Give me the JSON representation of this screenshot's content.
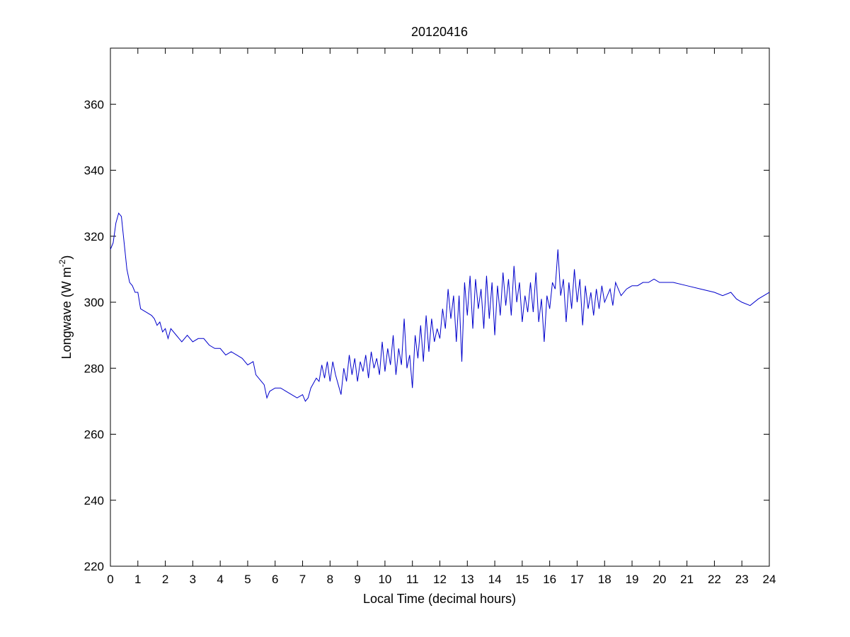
{
  "chart_data": {
    "type": "line",
    "title": "20120416",
    "xlabel": "Local Time (decimal hours)",
    "ylabel": "Longwave (W m",
    "ylabel_sup": "-2",
    "ylabel_end": ")",
    "xlim": [
      0,
      24
    ],
    "ylim": [
      220,
      377
    ],
    "xticks": [
      0,
      1,
      2,
      3,
      4,
      5,
      6,
      7,
      8,
      9,
      10,
      11,
      12,
      13,
      14,
      15,
      16,
      17,
      18,
      19,
      20,
      21,
      22,
      23,
      24
    ],
    "yticks": [
      220,
      240,
      260,
      280,
      300,
      320,
      340,
      360
    ],
    "grid": false,
    "series": [
      {
        "color": "#0000cc",
        "x": [
          0,
          0.1,
          0.2,
          0.3,
          0.4,
          0.5,
          0.6,
          0.7,
          0.8,
          0.9,
          1.0,
          1.1,
          1.3,
          1.5,
          1.6,
          1.7,
          1.8,
          1.9,
          2.0,
          2.1,
          2.2,
          2.4,
          2.6,
          2.8,
          3.0,
          3.2,
          3.4,
          3.6,
          3.8,
          4.0,
          4.2,
          4.4,
          4.6,
          4.8,
          5.0,
          5.2,
          5.3,
          5.5,
          5.6,
          5.7,
          5.8,
          6.0,
          6.2,
          6.4,
          6.6,
          6.8,
          7.0,
          7.1,
          7.2,
          7.3,
          7.5,
          7.6,
          7.7,
          7.8,
          7.9,
          8.0,
          8.1,
          8.2,
          8.3,
          8.4,
          8.5,
          8.6,
          8.7,
          8.8,
          8.9,
          9.0,
          9.1,
          9.2,
          9.3,
          9.4,
          9.5,
          9.6,
          9.7,
          9.8,
          9.9,
          10.0,
          10.1,
          10.2,
          10.3,
          10.4,
          10.5,
          10.6,
          10.7,
          10.8,
          10.9,
          11.0,
          11.1,
          11.2,
          11.3,
          11.4,
          11.5,
          11.6,
          11.7,
          11.8,
          11.9,
          12.0,
          12.1,
          12.2,
          12.3,
          12.4,
          12.5,
          12.6,
          12.7,
          12.8,
          12.9,
          13.0,
          13.1,
          13.2,
          13.3,
          13.4,
          13.5,
          13.6,
          13.7,
          13.8,
          13.9,
          14.0,
          14.1,
          14.2,
          14.3,
          14.4,
          14.5,
          14.6,
          14.7,
          14.8,
          14.9,
          15.0,
          15.1,
          15.2,
          15.3,
          15.4,
          15.5,
          15.6,
          15.7,
          15.8,
          15.9,
          16.0,
          16.1,
          16.2,
          16.3,
          16.4,
          16.5,
          16.6,
          16.7,
          16.8,
          16.9,
          17.0,
          17.1,
          17.2,
          17.3,
          17.4,
          17.5,
          17.6,
          17.7,
          17.8,
          17.9,
          18.0,
          18.2,
          18.3,
          18.4,
          18.6,
          18.8,
          19.0,
          19.2,
          19.4,
          19.6,
          19.8,
          20.0,
          20.5,
          21.0,
          21.5,
          22.0,
          22.3,
          22.6,
          22.8,
          23.0,
          23.3,
          23.6,
          24.0
        ],
        "values": [
          316,
          318,
          324,
          327,
          326,
          318,
          310,
          306,
          305,
          303,
          303,
          298,
          297,
          296,
          295,
          293,
          294,
          291,
          292,
          289,
          292,
          290,
          288,
          290,
          288,
          289,
          289,
          287,
          286,
          286,
          284,
          285,
          284,
          283,
          281,
          282,
          278,
          276,
          275,
          271,
          273,
          274,
          274,
          273,
          272,
          271,
          272,
          270,
          271,
          274,
          277,
          276,
          281,
          277,
          282,
          276,
          282,
          278,
          275,
          272,
          280,
          276,
          284,
          278,
          283,
          276,
          282,
          279,
          284,
          277,
          285,
          280,
          283,
          278,
          288,
          279,
          286,
          281,
          290,
          278,
          286,
          281,
          295,
          280,
          284,
          274,
          290,
          283,
          293,
          282,
          296,
          285,
          295,
          288,
          292,
          289,
          298,
          292,
          304,
          295,
          302,
          288,
          302,
          282,
          306,
          296,
          308,
          292,
          307,
          298,
          304,
          292,
          308,
          295,
          306,
          290,
          305,
          296,
          309,
          299,
          307,
          296,
          311,
          300,
          306,
          294,
          302,
          297,
          306,
          297,
          309,
          294,
          301,
          288,
          302,
          298,
          306,
          304,
          316,
          302,
          307,
          294,
          306,
          298,
          310,
          300,
          307,
          293,
          305,
          298,
          303,
          296,
          304,
          298,
          305,
          300,
          304,
          299,
          306,
          302,
          304,
          305,
          305,
          306,
          306,
          307,
          306,
          306,
          305,
          304,
          303,
          302,
          303,
          301,
          300,
          299,
          301,
          303
        ]
      }
    ]
  }
}
